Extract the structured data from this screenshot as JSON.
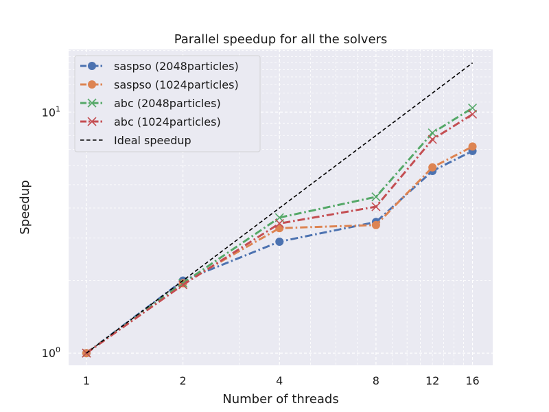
{
  "chart_data": {
    "type": "line",
    "title": "Parallel speedup for all the solvers",
    "xlabel": "Number of threads",
    "ylabel": "Speedup",
    "x": [
      1,
      2,
      4,
      8,
      12,
      16
    ],
    "xscale": "log",
    "yscale": "log",
    "xticks": [
      "1",
      "2",
      "4",
      "8",
      "12",
      "16"
    ],
    "yticks": [
      {
        "value": 1,
        "base": "10",
        "exp": "0"
      },
      {
        "value": 10,
        "base": "10",
        "exp": "1"
      }
    ],
    "xlim": [
      0.88,
      18.5
    ],
    "ylim": [
      0.89,
      18.2
    ],
    "grid": true,
    "legend_position": "top-left",
    "series": [
      {
        "name": "saspso (2048particles)",
        "color": "#4c72b0",
        "marker": "circle",
        "linestyle": "dashdot",
        "values": [
          1.0,
          2.0,
          2.9,
          3.5,
          5.7,
          6.9
        ]
      },
      {
        "name": "saspso (1024particles)",
        "color": "#dd8452",
        "marker": "circle",
        "linestyle": "dashdot",
        "values": [
          1.0,
          1.95,
          3.3,
          3.4,
          5.9,
          7.2
        ]
      },
      {
        "name": "abc (2048particles)",
        "color": "#55a868",
        "marker": "x",
        "linestyle": "dashdot",
        "values": [
          1.0,
          1.95,
          3.65,
          4.45,
          8.2,
          10.4
        ]
      },
      {
        "name": "abc (1024particles)",
        "color": "#c44e52",
        "marker": "x",
        "linestyle": "dashdot",
        "values": [
          1.0,
          1.92,
          3.45,
          4.05,
          7.7,
          9.8
        ]
      },
      {
        "name": "Ideal speedup",
        "color": "#000000",
        "marker": "none",
        "linestyle": "dashed",
        "values": [
          1,
          2,
          4,
          8,
          12,
          16
        ]
      }
    ]
  }
}
